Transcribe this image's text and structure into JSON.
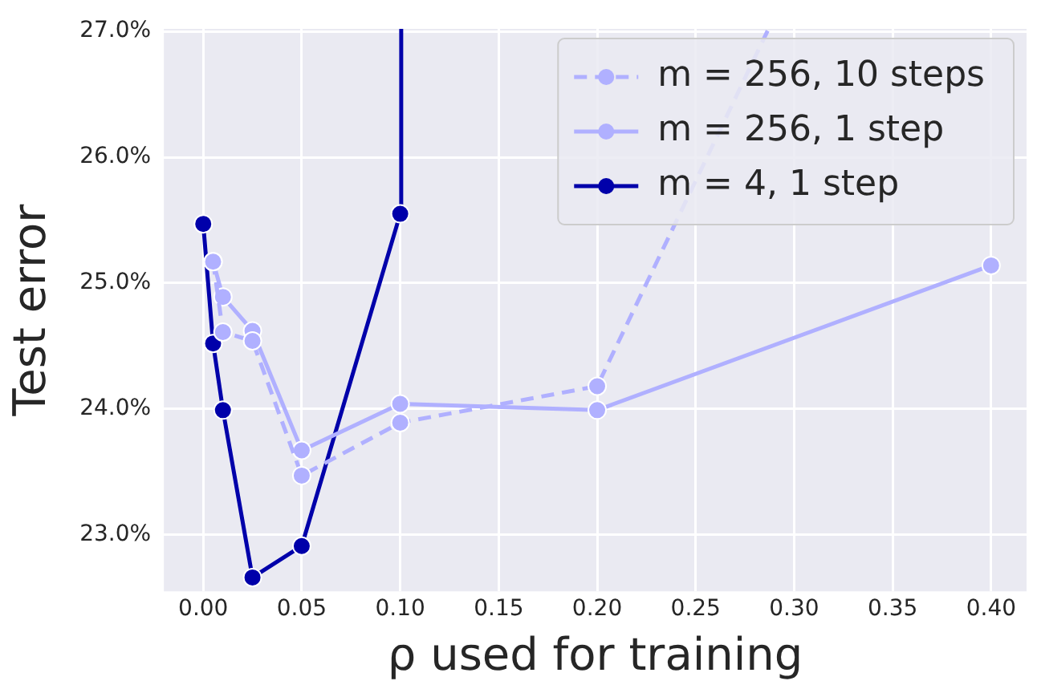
{
  "chart_data": {
    "type": "line",
    "xlabel": "ρ used for training",
    "ylabel": "Test error",
    "xlim": [
      -0.02,
      0.418
    ],
    "ylim": [
      22.55,
      27.02
    ],
    "xticks": [
      {
        "value": 0,
        "label": "0.00"
      },
      {
        "value": 0.05,
        "label": "0.05"
      },
      {
        "value": 0.1,
        "label": "0.10"
      },
      {
        "value": 0.15,
        "label": "0.15"
      },
      {
        "value": 0.2,
        "label": "0.20"
      },
      {
        "value": 0.25,
        "label": "0.25"
      },
      {
        "value": 0.3,
        "label": "0.30"
      },
      {
        "value": 0.35,
        "label": "0.35"
      },
      {
        "value": 0.4,
        "label": "0.40"
      }
    ],
    "yticks": [
      {
        "value": 23,
        "label": "23.0%"
      },
      {
        "value": 24,
        "label": "24.0%"
      },
      {
        "value": 25,
        "label": "25.0%"
      },
      {
        "value": 26,
        "label": "26.0%"
      },
      {
        "value": 27,
        "label": "27.0%"
      }
    ],
    "grid": true,
    "legend": "top right",
    "marker": "circle",
    "series": [
      {
        "name": "m = 256, 10 steps",
        "color": "#b0b0ff",
        "line_style": "dashed",
        "x": [
          0.005,
          0.01,
          0.025,
          0.05,
          0.1,
          0.2,
          0.287
        ],
        "values": [
          25.17,
          24.61,
          24.54,
          23.47,
          23.89,
          24.18,
          27.02
        ]
      },
      {
        "name": "m = 256, 1 step",
        "color": "#b0b0ff",
        "line_style": "solid",
        "x": [
          0.005,
          0.01,
          0.025,
          0.05,
          0.1,
          0.2,
          0.4
        ],
        "values": [
          25.17,
          24.89,
          24.62,
          23.67,
          24.04,
          23.99,
          25.14
        ]
      },
      {
        "name": "m = 4, 1 step",
        "color": "#0000aa",
        "line_style": "solid",
        "x": [
          0,
          0.005,
          0.01,
          0.025,
          0.05,
          0.1,
          0.1005
        ],
        "values": [
          25.47,
          24.52,
          23.99,
          22.66,
          22.91,
          25.55,
          27.02
        ]
      }
    ]
  }
}
